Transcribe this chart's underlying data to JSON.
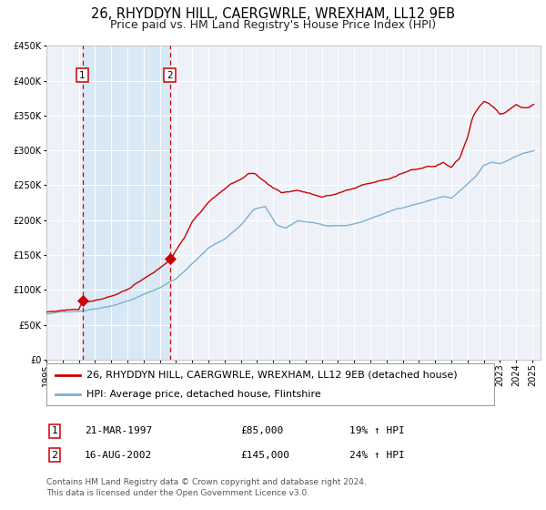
{
  "title": "26, RHYDDYN HILL, CAERGWRLE, WREXHAM, LL12 9EB",
  "subtitle": "Price paid vs. HM Land Registry's House Price Index (HPI)",
  "legend_line1": "26, RHYDDYN HILL, CAERGWRLE, WREXHAM, LL12 9EB (detached house)",
  "legend_line2": "HPI: Average price, detached house, Flintshire",
  "sale1_date": "21-MAR-1997",
  "sale1_price": "£85,000",
  "sale1_hpi": "19% ↑ HPI",
  "sale2_date": "16-AUG-2002",
  "sale2_price": "£145,000",
  "sale2_hpi": "24% ↑ HPI",
  "sale1_year": 1997.22,
  "sale1_value": 85000,
  "sale2_year": 2002.62,
  "sale2_value": 145000,
  "footer": "Contains HM Land Registry data © Crown copyright and database right 2024.\nThis data is licensed under the Open Government Licence v3.0.",
  "ylim": [
    0,
    450000
  ],
  "xlim_start": 1995.0,
  "xlim_end": 2025.5,
  "background_color": "#ffffff",
  "plot_bg_color": "#eef2f8",
  "shaded_region_color": "#d8e8f4",
  "grid_color": "#ffffff",
  "red_line_color": "#cc0000",
  "blue_line_color": "#7ab0d4",
  "dashed_line_color": "#cc0000",
  "sale_marker_color": "#cc0000",
  "title_fontsize": 10.5,
  "subtitle_fontsize": 9,
  "tick_fontsize": 7,
  "legend_fontsize": 8,
  "footer_fontsize": 6.5,
  "sale_info_fontsize": 8,
  "keypoints_hpi": [
    [
      1995.0,
      65000
    ],
    [
      1996.0,
      68000
    ],
    [
      1997.0,
      70000
    ],
    [
      1998.0,
      74000
    ],
    [
      1999.0,
      79000
    ],
    [
      2000.0,
      86000
    ],
    [
      2001.0,
      95000
    ],
    [
      2002.0,
      105000
    ],
    [
      2003.0,
      118000
    ],
    [
      2004.0,
      140000
    ],
    [
      2005.0,
      162000
    ],
    [
      2006.0,
      175000
    ],
    [
      2007.0,
      195000
    ],
    [
      2007.8,
      218000
    ],
    [
      2008.5,
      222000
    ],
    [
      2009.2,
      195000
    ],
    [
      2009.8,
      190000
    ],
    [
      2010.5,
      200000
    ],
    [
      2011.5,
      198000
    ],
    [
      2012.5,
      192000
    ],
    [
      2013.5,
      192000
    ],
    [
      2014.5,
      198000
    ],
    [
      2015.5,
      207000
    ],
    [
      2016.5,
      215000
    ],
    [
      2017.5,
      222000
    ],
    [
      2018.5,
      228000
    ],
    [
      2019.5,
      235000
    ],
    [
      2020.0,
      232000
    ],
    [
      2020.8,
      248000
    ],
    [
      2021.5,
      262000
    ],
    [
      2022.0,
      278000
    ],
    [
      2022.5,
      282000
    ],
    [
      2023.0,
      280000
    ],
    [
      2023.5,
      285000
    ],
    [
      2024.0,
      292000
    ],
    [
      2024.5,
      296000
    ],
    [
      2025.2,
      300000
    ]
  ],
  "keypoints_red": [
    [
      1995.0,
      68000
    ],
    [
      1996.0,
      71000
    ],
    [
      1997.0,
      74000
    ],
    [
      1997.22,
      85000
    ],
    [
      1998.0,
      88000
    ],
    [
      1999.0,
      95000
    ],
    [
      2000.0,
      105000
    ],
    [
      2001.0,
      118000
    ],
    [
      2002.0,
      132000
    ],
    [
      2002.62,
      145000
    ],
    [
      2003.0,
      158000
    ],
    [
      2003.5,
      175000
    ],
    [
      2004.0,
      200000
    ],
    [
      2005.0,
      228000
    ],
    [
      2006.0,
      248000
    ],
    [
      2007.0,
      262000
    ],
    [
      2007.5,
      270000
    ],
    [
      2007.9,
      268000
    ],
    [
      2008.5,
      255000
    ],
    [
      2009.0,
      245000
    ],
    [
      2009.5,
      238000
    ],
    [
      2010.0,
      240000
    ],
    [
      2010.5,
      242000
    ],
    [
      2011.0,
      240000
    ],
    [
      2011.5,
      238000
    ],
    [
      2012.0,
      235000
    ],
    [
      2012.5,
      237000
    ],
    [
      2013.0,
      240000
    ],
    [
      2013.5,
      245000
    ],
    [
      2014.5,
      252000
    ],
    [
      2015.5,
      260000
    ],
    [
      2016.5,
      268000
    ],
    [
      2017.0,
      272000
    ],
    [
      2017.5,
      278000
    ],
    [
      2018.0,
      280000
    ],
    [
      2018.5,
      285000
    ],
    [
      2019.0,
      285000
    ],
    [
      2019.5,
      290000
    ],
    [
      2020.0,
      282000
    ],
    [
      2020.5,
      295000
    ],
    [
      2021.0,
      325000
    ],
    [
      2021.3,
      355000
    ],
    [
      2021.7,
      370000
    ],
    [
      2022.0,
      378000
    ],
    [
      2022.3,
      375000
    ],
    [
      2022.7,
      368000
    ],
    [
      2023.0,
      360000
    ],
    [
      2023.3,
      362000
    ],
    [
      2023.7,
      370000
    ],
    [
      2024.0,
      375000
    ],
    [
      2024.3,
      372000
    ],
    [
      2024.7,
      370000
    ],
    [
      2025.2,
      375000
    ]
  ]
}
